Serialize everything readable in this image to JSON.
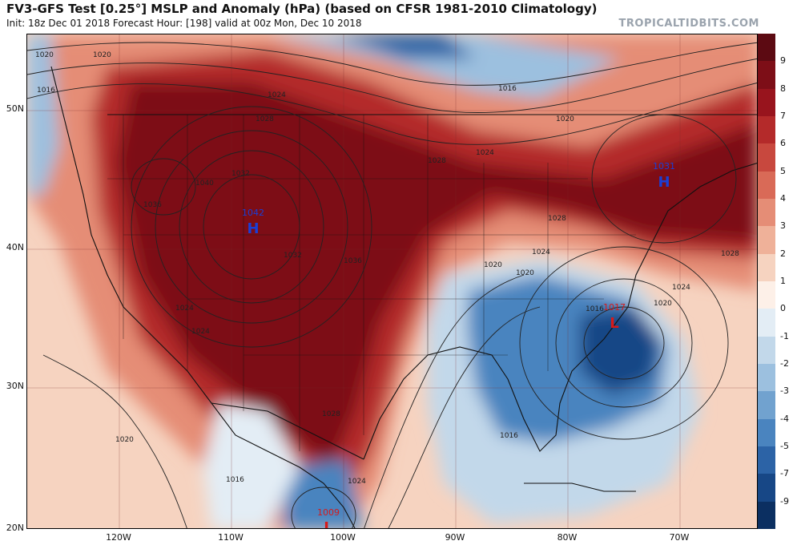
{
  "header": {
    "title": "FV3-GFS Test [0.25°] MSLP and Anomaly (hPa) (based on CFSR 1981-2010 Climatology)",
    "subtitle": "Init: 18z Dec 01 2018   Forecast Hour: [198]   valid at 00z Mon, Dec 10 2018",
    "brand": "TROPICALTIDBITS.COM"
  },
  "axes": {
    "lat_labels": [
      "50N",
      "40N",
      "30N",
      "20N"
    ],
    "lon_labels": [
      "120W",
      "110W",
      "100W",
      "90W",
      "80W",
      "70W"
    ]
  },
  "color_scale": {
    "labels": [
      "9",
      "8",
      "7",
      "6",
      "5",
      "4",
      "3",
      "2",
      "1",
      "0",
      "-1",
      "-2",
      "-3",
      "-4",
      "-5",
      "-7",
      "-9"
    ],
    "colors": [
      "#5c0a12",
      "#7d0e17",
      "#98141d",
      "#b42a2a",
      "#c8483e",
      "#d96a57",
      "#e58d76",
      "#efb199",
      "#f6d3c0",
      "#fdf0e8",
      "#e3edf5",
      "#c2d8ea",
      "#9cc0df",
      "#71a2cf",
      "#4a84bf",
      "#2c63a6",
      "#174786",
      "#0b2f61"
    ]
  },
  "pressure_centers": [
    {
      "type": "H",
      "value": "1042",
      "color": "#1a3fd6"
    },
    {
      "type": "H",
      "value": "1031",
      "color": "#1a3fd6"
    },
    {
      "type": "L",
      "value": "1017",
      "color": "#d61a1a"
    },
    {
      "type": "L",
      "value": "1009",
      "color": "#d61a1a"
    }
  ],
  "isobar_labels": [
    "1020",
    "1016",
    "1024",
    "1028",
    "1032",
    "1036",
    "1040",
    "1016",
    "1020",
    "1024",
    "1028",
    "1032",
    "1036",
    "1024",
    "1028",
    "1020",
    "1016",
    "1020",
    "1024",
    "1028",
    "1024",
    "1020",
    "1016",
    "1020",
    "1016",
    "1024",
    "1028",
    "1024",
    "1020"
  ]
}
